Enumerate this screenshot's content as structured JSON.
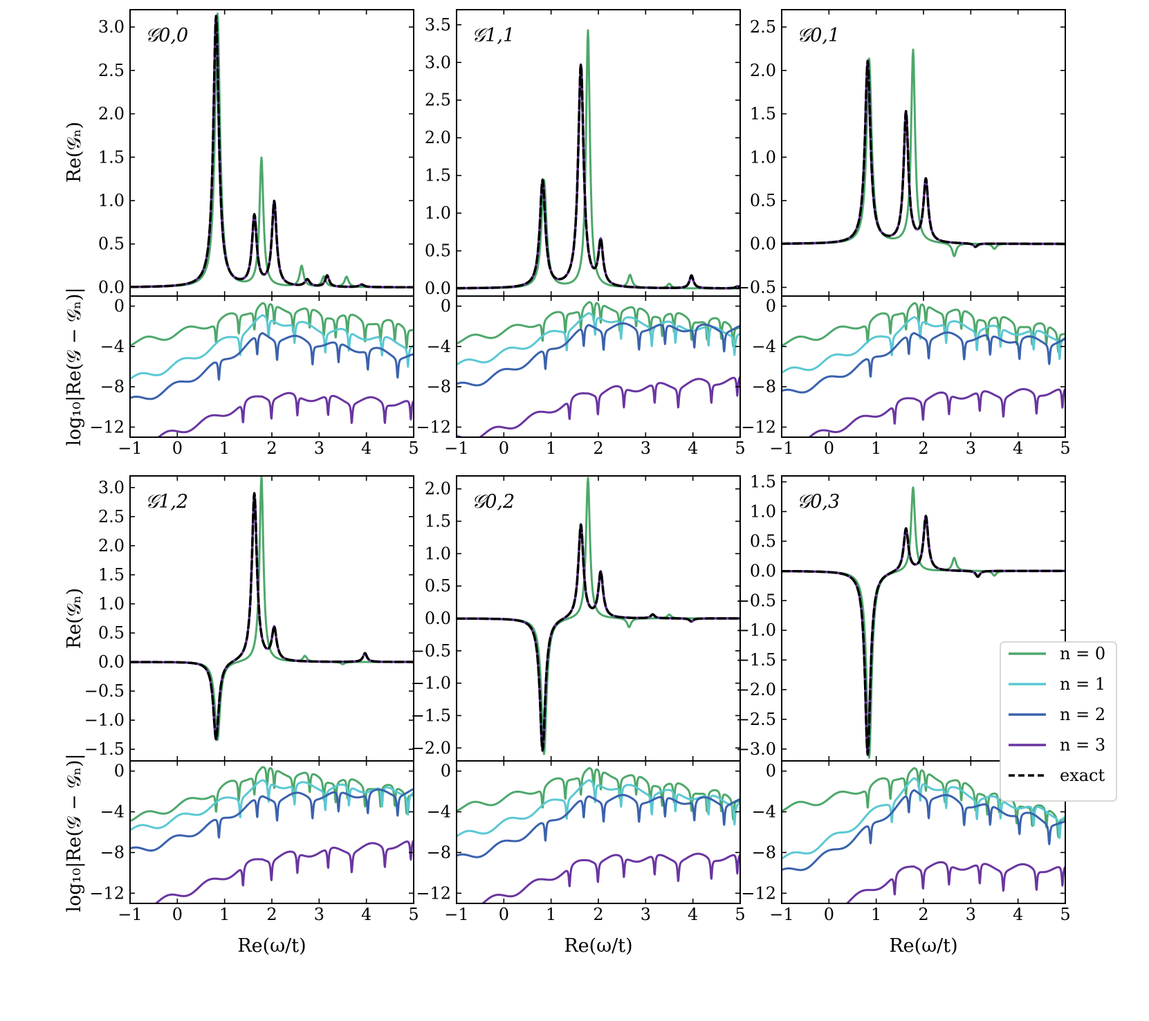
{
  "figure": {
    "ylabel_top": "Re(𝒢ₙ)",
    "ylabel_bottom": "log₁₀|Re(𝒢 − 𝒢ₙ)|",
    "xlabel": "Re(ω/t)"
  },
  "legend": {
    "entries": [
      {
        "key": "n0",
        "label": "n = 0",
        "color": "#4ea86b",
        "style": "solid"
      },
      {
        "key": "n1",
        "label": "n = 1",
        "color": "#5bc8d3",
        "style": "solid"
      },
      {
        "key": "n2",
        "label": "n = 2",
        "color": "#3a62ad",
        "style": "solid"
      },
      {
        "key": "n3",
        "label": "n = 3",
        "color": "#6a35a0",
        "style": "solid"
      },
      {
        "key": "exact",
        "label": "exact",
        "color": "#000000",
        "style": "dashed"
      }
    ]
  },
  "chart_data": [
    {
      "type": "line",
      "title": "𝒢0,0",
      "xlabel": "Re(ω/t)",
      "ylabel": "Re(𝒢ₙ)",
      "xlim": [
        -1,
        5
      ],
      "ylim": [
        -0.1,
        3.2
      ],
      "xticks": [
        -1,
        0,
        1,
        2,
        3,
        4,
        5
      ],
      "yticks": [
        0.0,
        0.5,
        1.0,
        1.5,
        2.0,
        2.5,
        3.0
      ],
      "ytick_labels": [
        "0.0",
        "0.5",
        "1.0",
        "1.5",
        "2.0",
        "2.5",
        "3.0"
      ],
      "exact": {
        "peaks": [
          [
            0.82,
            3.12,
            0.07
          ],
          [
            1.63,
            0.8,
            0.06
          ],
          [
            2.05,
            0.97,
            0.06
          ],
          [
            2.75,
            0.08,
            0.06
          ],
          [
            3.17,
            0.13,
            0.05
          ],
          [
            3.9,
            0.03,
            0.06
          ]
        ]
      },
      "n0": {
        "peaks": [
          [
            0.85,
            3.15,
            0.065
          ],
          [
            1.78,
            1.48,
            0.05
          ],
          [
            2.63,
            0.24,
            0.05
          ],
          [
            3.1,
            0.12,
            0.05
          ],
          [
            3.58,
            0.12,
            0.05
          ]
        ]
      },
      "error": {
        "n0": {
          "start": -3.6,
          "peak": 0.2,
          "end": -2.0
        },
        "n1": {
          "start": -7.2,
          "peak": -1.2,
          "end": -3.8
        },
        "n2": {
          "start": -9.4,
          "peak": -2.8,
          "end": -5.0
        },
        "n3": {
          "start": -13.6,
          "peak": -8.8,
          "end": -9.6
        }
      },
      "error_ylim": [
        -13,
        1
      ],
      "error_yticks": [
        0,
        -4,
        -8,
        -12
      ]
    },
    {
      "type": "line",
      "title": "𝒢1,1",
      "xlabel": "Re(ω/t)",
      "ylabel": "Re(𝒢ₙ)",
      "xlim": [
        -1,
        5
      ],
      "ylim": [
        -0.1,
        3.7
      ],
      "xticks": [
        -1,
        0,
        1,
        2,
        3,
        4,
        5
      ],
      "yticks": [
        0.0,
        0.5,
        1.0,
        1.5,
        2.0,
        2.5,
        3.0,
        3.5
      ],
      "ytick_labels": [
        "0.0",
        "0.5",
        "1.0",
        "1.5",
        "2.0",
        "2.5",
        "3.0",
        "3.5"
      ],
      "exact": {
        "peaks": [
          [
            0.82,
            1.42,
            0.07
          ],
          [
            1.63,
            2.95,
            0.07
          ],
          [
            2.05,
            0.58,
            0.06
          ],
          [
            3.97,
            0.17,
            0.05
          ],
          [
            4.95,
            0.03,
            0.05
          ]
        ]
      },
      "n0": {
        "peaks": [
          [
            0.85,
            1.43,
            0.065
          ],
          [
            1.78,
            3.42,
            0.05
          ],
          [
            2.67,
            0.17,
            0.05
          ],
          [
            3.5,
            0.06,
            0.05
          ]
        ]
      },
      "error": {
        "n0": {
          "start": -3.4,
          "peak": 0.3,
          "end": -1.8
        },
        "n1": {
          "start": -5.8,
          "peak": -1.0,
          "end": -2.6
        },
        "n2": {
          "start": -8.0,
          "peak": -2.0,
          "end": -2.2
        },
        "n3": {
          "start": -13.2,
          "peak": -8.5,
          "end": -7.2
        }
      },
      "error_ylim": [
        -13,
        1
      ],
      "error_yticks": [
        0,
        -4,
        -8,
        -12
      ]
    },
    {
      "type": "line",
      "title": "𝒢0,1",
      "xlabel": "Re(ω/t)",
      "ylabel": "Re(𝒢ₙ)",
      "xlim": [
        -1,
        5
      ],
      "ylim": [
        -0.6,
        2.7
      ],
      "xticks": [
        -1,
        0,
        1,
        2,
        3,
        4,
        5
      ],
      "yticks": [
        -0.5,
        0.0,
        0.5,
        1.0,
        1.5,
        2.0,
        2.5
      ],
      "ytick_labels": [
        "−0.5",
        "0.0",
        "0.5",
        "1.0",
        "1.5",
        "2.0",
        "2.5"
      ],
      "exact": {
        "peaks": [
          [
            0.82,
            2.1,
            0.07
          ],
          [
            1.63,
            1.5,
            0.06
          ],
          [
            2.05,
            0.72,
            0.06
          ],
          [
            3.1,
            -0.04,
            0.05
          ]
        ]
      },
      "n0": {
        "peaks": [
          [
            0.85,
            2.13,
            0.065
          ],
          [
            1.78,
            2.23,
            0.05
          ],
          [
            2.65,
            -0.15,
            0.05
          ],
          [
            3.5,
            -0.06,
            0.05
          ]
        ]
      },
      "error": {
        "n0": {
          "start": -3.6,
          "peak": 0.2,
          "end": -2.4
        },
        "n1": {
          "start": -6.6,
          "peak": -1.4,
          "end": -3.0
        },
        "n2": {
          "start": -8.7,
          "peak": -2.8,
          "end": -3.5
        },
        "n3": {
          "start": -13.5,
          "peak": -9.0,
          "end": -8.4
        }
      },
      "error_ylim": [
        -13,
        1
      ],
      "error_yticks": [
        0,
        -4,
        -8,
        -12
      ]
    },
    {
      "type": "line",
      "title": "𝒢1,2",
      "xlabel": "Re(ω/t)",
      "ylabel": "Re(𝒢ₙ)",
      "xlim": [
        -1,
        5
      ],
      "ylim": [
        -1.7,
        3.2
      ],
      "xticks": [
        -1,
        0,
        1,
        2,
        3,
        4,
        5
      ],
      "yticks": [
        -1.5,
        -1.0,
        -0.5,
        0.0,
        0.5,
        1.0,
        1.5,
        2.0,
        2.5,
        3.0
      ],
      "ytick_labels": [
        "−1.5",
        "−1.0",
        "−0.5",
        "0.0",
        "0.5",
        "1.0",
        "1.5",
        "2.0",
        "2.5",
        "3.0"
      ],
      "exact": {
        "peaks": [
          [
            0.82,
            -1.35,
            0.07
          ],
          [
            1.63,
            2.9,
            0.065
          ],
          [
            2.05,
            0.55,
            0.06
          ],
          [
            3.97,
            0.15,
            0.05
          ]
        ]
      },
      "n0": {
        "peaks": [
          [
            0.85,
            -1.35,
            0.065
          ],
          [
            1.78,
            3.2,
            0.05
          ],
          [
            2.7,
            0.1,
            0.05
          ],
          [
            3.5,
            -0.04,
            0.05
          ]
        ]
      },
      "error": {
        "n0": {
          "start": -4.6,
          "peak": 0.3,
          "end": -2.0
        },
        "n1": {
          "start": -5.8,
          "peak": -1.2,
          "end": -2.0
        },
        "n2": {
          "start": -7.9,
          "peak": -2.6,
          "end": -2.0
        },
        "n3": {
          "start": -13.4,
          "peak": -8.5,
          "end": -7.0
        }
      },
      "error_ylim": [
        -13,
        1
      ],
      "error_yticks": [
        0,
        -4,
        -8,
        -12
      ]
    },
    {
      "type": "line",
      "title": "𝒢0,2",
      "xlabel": "Re(ω/t)",
      "ylabel": "Re(𝒢ₙ)",
      "xlim": [
        -1,
        5
      ],
      "ylim": [
        -2.2,
        2.2
      ],
      "xticks": [
        -1,
        0,
        1,
        2,
        3,
        4,
        5
      ],
      "yticks": [
        -2.0,
        -1.5,
        -1.0,
        -0.5,
        0.0,
        0.5,
        1.0,
        1.5,
        2.0
      ],
      "ytick_labels": [
        "−2.0",
        "−1.5",
        "−1.0",
        "−0.5",
        "0.0",
        "0.5",
        "1.0",
        "1.5",
        "2.0"
      ],
      "exact": {
        "peaks": [
          [
            0.82,
            -2.05,
            0.07
          ],
          [
            1.63,
            1.45,
            0.065
          ],
          [
            2.05,
            0.7,
            0.06
          ],
          [
            3.15,
            0.06,
            0.05
          ],
          [
            3.97,
            -0.05,
            0.05
          ]
        ]
      },
      "n0": {
        "peaks": [
          [
            0.85,
            -2.1,
            0.065
          ],
          [
            1.78,
            2.18,
            0.05
          ],
          [
            2.65,
            -0.14,
            0.05
          ],
          [
            3.5,
            0.06,
            0.05
          ]
        ]
      },
      "error": {
        "n0": {
          "start": -3.6,
          "peak": 0.2,
          "end": -2.6
        },
        "n1": {
          "start": -6.4,
          "peak": -1.2,
          "end": -3.0
        },
        "n2": {
          "start": -8.6,
          "peak": -2.6,
          "end": -3.0
        },
        "n3": {
          "start": -13.4,
          "peak": -8.6,
          "end": -8.4
        }
      },
      "error_ylim": [
        -13,
        1
      ],
      "error_yticks": [
        0,
        -4,
        -8,
        -12
      ]
    },
    {
      "type": "line",
      "title": "𝒢0,3",
      "xlabel": "Re(ω/t)",
      "ylabel": "Re(𝒢ₙ)",
      "xlim": [
        -1,
        5
      ],
      "ylim": [
        -3.2,
        1.6
      ],
      "xticks": [
        -1,
        0,
        1,
        2,
        3,
        4,
        5
      ],
      "yticks": [
        -3.0,
        -2.5,
        -2.0,
        -1.5,
        -1.0,
        -0.5,
        0.0,
        0.5,
        1.0,
        1.5
      ],
      "ytick_labels": [
        "−3.0",
        "−2.5",
        "−2.0",
        "−1.5",
        "−1.0",
        "−0.5",
        "0.0",
        "0.5",
        "1.0",
        "1.5"
      ],
      "exact": {
        "peaks": [
          [
            0.82,
            -3.1,
            0.07
          ],
          [
            1.63,
            0.72,
            0.06
          ],
          [
            2.05,
            0.92,
            0.06
          ],
          [
            3.15,
            -0.1,
            0.05
          ]
        ]
      },
      "n0": {
        "peaks": [
          [
            0.85,
            -3.15,
            0.065
          ],
          [
            1.78,
            1.42,
            0.05
          ],
          [
            2.65,
            0.22,
            0.05
          ],
          [
            3.5,
            -0.08,
            0.05
          ]
        ]
      },
      "error": {
        "n0": {
          "start": -3.6,
          "peak": 0.2,
          "end": -4.4
        },
        "n1": {
          "start": -8.6,
          "peak": -1.0,
          "end": -4.4
        },
        "n2": {
          "start": -10.0,
          "peak": -2.0,
          "end": -5.2
        },
        "n3": {
          "start": -15.0,
          "peak": -9.2,
          "end": -9.6
        }
      },
      "error_ylim": [
        -13,
        1
      ],
      "error_yticks": [
        0,
        -4,
        -8,
        -12
      ]
    }
  ]
}
